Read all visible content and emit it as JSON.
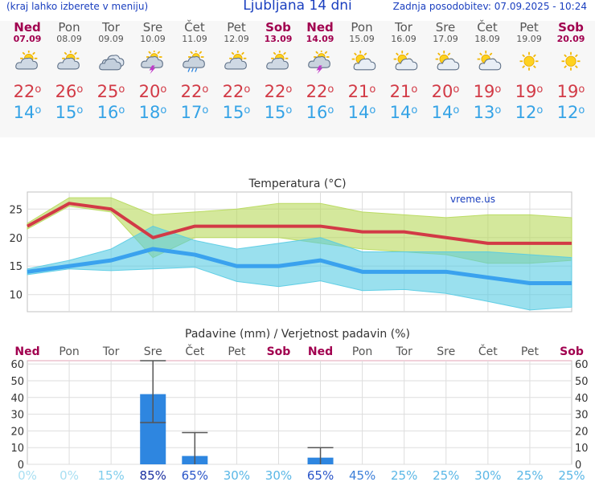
{
  "header": {
    "region_hint": "(kraj lahko izberete v meniju)",
    "title": "Ljubljana 14 dni",
    "updated": "Zadnja posodobitev: 07.09.2025 - 10:24"
  },
  "forecast": {
    "days": [
      {
        "name": "Ned",
        "date": "07.09",
        "weekend": true,
        "icon": "partly-cloudy-icon",
        "max": "22",
        "min": "14"
      },
      {
        "name": "Pon",
        "date": "08.09",
        "weekend": false,
        "icon": "partly-cloudy-icon",
        "max": "26",
        "min": "15"
      },
      {
        "name": "Tor",
        "date": "09.09",
        "weekend": false,
        "icon": "cloudy-icon",
        "max": "25",
        "min": "16"
      },
      {
        "name": "Sre",
        "date": "10.09",
        "weekend": false,
        "icon": "thunderstorm-icon",
        "max": "20",
        "min": "18"
      },
      {
        "name": "Čet",
        "date": "11.09",
        "weekend": false,
        "icon": "rain-showers-icon",
        "max": "22",
        "min": "17"
      },
      {
        "name": "Pet",
        "date": "12.09",
        "weekend": false,
        "icon": "partly-cloudy-icon",
        "max": "22",
        "min": "15"
      },
      {
        "name": "Sob",
        "date": "13.09",
        "weekend": true,
        "icon": "partly-cloudy-icon",
        "max": "22",
        "min": "15"
      },
      {
        "name": "Ned",
        "date": "14.09",
        "weekend": true,
        "icon": "thunderstorm-icon",
        "max": "22",
        "min": "16"
      },
      {
        "name": "Pon",
        "date": "15.09",
        "weekend": false,
        "icon": "mostly-sunny-icon",
        "max": "21",
        "min": "14"
      },
      {
        "name": "Tor",
        "date": "16.09",
        "weekend": false,
        "icon": "mostly-sunny-icon",
        "max": "21",
        "min": "14"
      },
      {
        "name": "Sre",
        "date": "17.09",
        "weekend": false,
        "icon": "mostly-sunny-icon",
        "max": "20",
        "min": "14"
      },
      {
        "name": "Čet",
        "date": "18.09",
        "weekend": false,
        "icon": "mostly-sunny-icon",
        "max": "19",
        "min": "13"
      },
      {
        "name": "Pet",
        "date": "19.09",
        "weekend": false,
        "icon": "sunny-icon",
        "max": "19",
        "min": "12"
      },
      {
        "name": "Sob",
        "date": "20.09",
        "weekend": true,
        "icon": "sunny-icon",
        "max": "19",
        "min": "12"
      }
    ],
    "degree_symbol": "o"
  },
  "colors": {
    "max_temp": "#d23a46",
    "min_temp": "#35a3e6",
    "weekend": "#a1004f",
    "accent": "#1a3fbf",
    "precip_bar": "#2e86e0"
  },
  "chart_data": [
    {
      "type": "line",
      "title": "Temperatura (°C)",
      "watermark": "vreme.us",
      "ylim": [
        7,
        28
      ],
      "yticks": [
        10,
        15,
        20,
        25
      ],
      "grid": true,
      "x": [
        "07.09",
        "08.09",
        "09.09",
        "10.09",
        "11.09",
        "12.09",
        "13.09",
        "14.09",
        "15.09",
        "16.09",
        "17.09",
        "18.09",
        "19.09",
        "20.09"
      ],
      "series": [
        {
          "values": [
            22,
            26,
            25,
            20,
            22,
            22,
            22,
            22,
            21,
            21,
            20,
            19,
            19,
            19
          ]
        },
        {
          "values": [
            14,
            15,
            16,
            18,
            17,
            15,
            15,
            16,
            14,
            14,
            14,
            13,
            12,
            12
          ]
        }
      ],
      "max_band_upper": [
        22.5,
        27,
        27,
        24,
        24.5,
        25,
        26,
        26,
        24.5,
        24,
        23.5,
        24,
        24,
        23.5
      ],
      "max_band_lower": [
        21.5,
        25.5,
        24.5,
        16.5,
        20,
        20,
        20,
        19,
        18,
        17.5,
        17,
        15.5,
        15.5,
        16
      ],
      "min_band_upper": [
        14.5,
        16,
        18,
        22,
        19.5,
        18,
        19,
        20,
        17.5,
        17.5,
        17.5,
        17.5,
        17,
        16.5
      ],
      "min_band_lower": [
        13.5,
        14.5,
        14.2,
        14.5,
        14.8,
        12.3,
        11.4,
        12.4,
        10.7,
        10.9,
        10.2,
        8.8,
        7.3,
        7.8
      ]
    },
    {
      "type": "bar",
      "title": "Padavine (mm) / Verjetnost padavin (%)",
      "ylim": [
        0,
        62
      ],
      "yticks": [
        0,
        10,
        20,
        30,
        40,
        50,
        60
      ],
      "grid": true,
      "categories": [
        "Ned",
        "Pon",
        "Tor",
        "Sre",
        "Čet",
        "Pet",
        "Sob",
        "Ned",
        "Pon",
        "Tor",
        "Sre",
        "Čet",
        "Pet",
        "Sob"
      ],
      "weekend": [
        true,
        false,
        false,
        false,
        false,
        false,
        true,
        true,
        false,
        false,
        false,
        false,
        false,
        true
      ],
      "values": [
        0,
        0,
        0,
        42,
        5,
        0,
        0,
        4,
        0,
        0,
        0,
        0,
        0,
        0
      ],
      "error_low": [
        null,
        null,
        null,
        25,
        0,
        null,
        null,
        0,
        null,
        null,
        null,
        null,
        null,
        null
      ],
      "error_high": [
        null,
        null,
        null,
        62,
        19,
        null,
        null,
        10,
        null,
        null,
        null,
        null,
        null,
        null
      ],
      "probability": [
        "0%",
        "0%",
        "15%",
        "85%",
        "65%",
        "30%",
        "30%",
        "65%",
        "45%",
        "25%",
        "25%",
        "30%",
        "25%",
        "25%"
      ]
    }
  ]
}
